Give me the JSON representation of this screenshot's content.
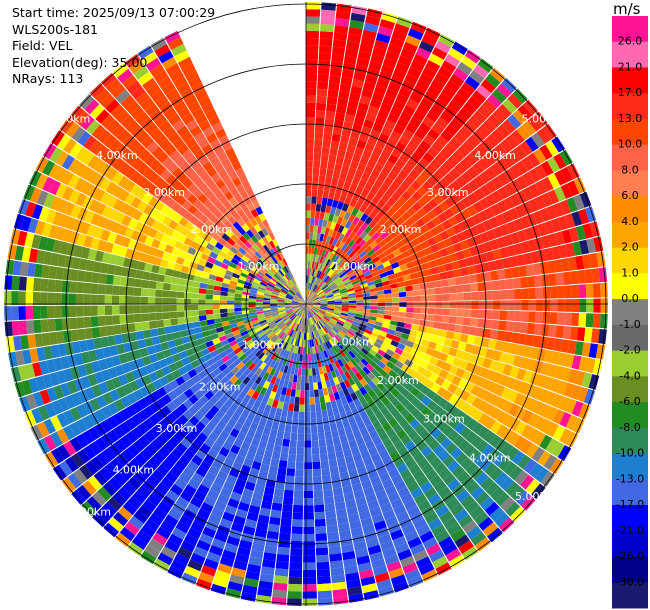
{
  "header": {
    "start_time": "Start time: 2025/09/13 07:00:29",
    "instrument": "WLS200s-181",
    "field": "Field: VEL",
    "elevation": "Elevation(deg): 35.00",
    "nrays": "NRays: 113"
  },
  "colorbar": {
    "unit": "m/s",
    "ticks": [
      "26.0",
      "21.0",
      "17.0",
      "13.0",
      "10.0",
      "8.0",
      "6.0",
      "4.0",
      "2.0",
      "1.0",
      "0.0",
      "-1.0",
      "-2.0",
      "-4.0",
      "-6.0",
      "-8.0",
      "-10.0",
      "-13.0",
      "-17.0",
      "-21.0",
      "-26.0",
      "-30.0"
    ],
    "colors": [
      "#ff1493",
      "#ff69b4",
      "#ff0000",
      "#ff2a1a",
      "#ff4500",
      "#ff6347",
      "#ff7f50",
      "#ff8c00",
      "#ffa500",
      "#ffd700",
      "#ffff00",
      "#808080",
      "#696969",
      "#9acd32",
      "#6b8e23",
      "#228b22",
      "#2e8b57",
      "#1e7fd0",
      "#4169e1",
      "#0000ff",
      "#0000cd",
      "#00008b",
      "#191970"
    ]
  },
  "chart_data": {
    "type": "polar-ppi",
    "field": "VEL",
    "units": "m/s",
    "range_rings_km": [
      1.0,
      2.0,
      3.0,
      4.0,
      5.0
    ],
    "ring_labels": [
      "1.00km",
      "2.00km",
      "3.00km",
      "4.00km",
      "5.00km"
    ],
    "n_rays": 113,
    "missing_sector_deg": [
      335,
      360
    ],
    "sectors": [
      {
        "az_from": 0,
        "az_to": 40,
        "inner_v": 10,
        "outer_v": 21
      },
      {
        "az_from": 40,
        "az_to": 80,
        "inner_v": 9,
        "outer_v": 17
      },
      {
        "az_from": 80,
        "az_to": 100,
        "inner_v": 5,
        "outer_v": 12
      },
      {
        "az_from": 100,
        "az_to": 125,
        "inner_v": -1,
        "outer_v": 4
      },
      {
        "az_from": 125,
        "az_to": 150,
        "inner_v": -8,
        "outer_v": -10
      },
      {
        "az_from": 150,
        "az_to": 175,
        "inner_v": -13,
        "outer_v": -17
      },
      {
        "az_from": 175,
        "az_to": 215,
        "inner_v": -14,
        "outer_v": -18
      },
      {
        "az_from": 215,
        "az_to": 240,
        "inner_v": -12,
        "outer_v": -22
      },
      {
        "az_from": 240,
        "az_to": 260,
        "inner_v": -9,
        "outer_v": -11
      },
      {
        "az_from": 260,
        "az_to": 285,
        "inner_v": -3,
        "outer_v": -6
      },
      {
        "az_from": 285,
        "az_to": 305,
        "inner_v": 0,
        "outer_v": 3
      },
      {
        "az_from": 305,
        "az_to": 335,
        "inner_v": 6,
        "outer_v": 13
      }
    ]
  }
}
